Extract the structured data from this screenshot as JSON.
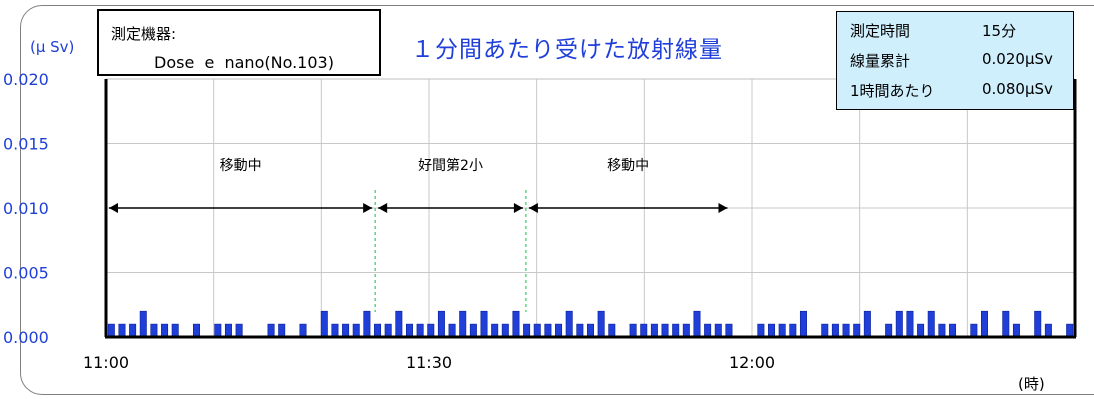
{
  "chart_data": {
    "type": "bar",
    "title": "１分間あたり受けた放射線量",
    "ylabel": "(μ Sv)",
    "xlabel": "(時)",
    "ylim": [
      0,
      0.02
    ],
    "yticks": [
      "0.000",
      "0.005",
      "0.010",
      "0.015",
      "0.020"
    ],
    "xticks": [
      {
        "label": "11:00",
        "minute": 0
      },
      {
        "label": "11:30",
        "minute": 30
      },
      {
        "label": "12:00",
        "minute": 60
      }
    ],
    "xlim_minutes": [
      0,
      90
    ],
    "grid": true,
    "bar_color": "#1f3fd8",
    "series": [
      {
        "values": [
          0.001,
          0.001,
          0.001,
          0.002,
          0.001,
          0.001,
          0.001,
          0,
          0.001,
          0,
          0.001,
          0.001,
          0.001,
          0,
          0,
          0.001,
          0.001,
          0,
          0.001,
          0,
          0.002,
          0.001,
          0.001,
          0.001,
          0.002,
          0.001,
          0.001,
          0.002,
          0.001,
          0.001,
          0.001,
          0.002,
          0.001,
          0.002,
          0.001,
          0.002,
          0.001,
          0.001,
          0.002,
          0.001,
          0.001,
          0.001,
          0.001,
          0.002,
          0.001,
          0.001,
          0.002,
          0.001,
          0,
          0.001,
          0.001,
          0.001,
          0.001,
          0.001,
          0.001,
          0.002,
          0.001,
          0.001,
          0.001,
          0,
          0,
          0.001,
          0.001,
          0.001,
          0.001,
          0.002,
          0,
          0.001,
          0.001,
          0.001,
          0.001,
          0.002,
          0,
          0.001,
          0.002,
          0.002,
          0.001,
          0.002,
          0.001,
          0.001,
          0,
          0.001,
          0.002,
          0,
          0.002,
          0.001,
          0,
          0.002,
          0.001,
          0,
          0.001
        ]
      }
    ],
    "annotations": [
      {
        "text": "移動中",
        "from_minute": 0,
        "to_minute": 25
      },
      {
        "text": "好間第2小",
        "from_minute": 25,
        "to_minute": 39
      },
      {
        "text": "移動中",
        "from_minute": 39,
        "to_minute": 58
      }
    ],
    "dividers_minutes": [
      25,
      39
    ]
  },
  "device": {
    "label": "測定機器:",
    "name": "Dose  e  nano(No.103)"
  },
  "info": {
    "rows": [
      {
        "label": "測定時間",
        "value": "15分"
      },
      {
        "label": "線量累計",
        "value": "0.020μSv"
      },
      {
        "label": "1時間あたり",
        "value": "0.080μSv"
      }
    ]
  }
}
